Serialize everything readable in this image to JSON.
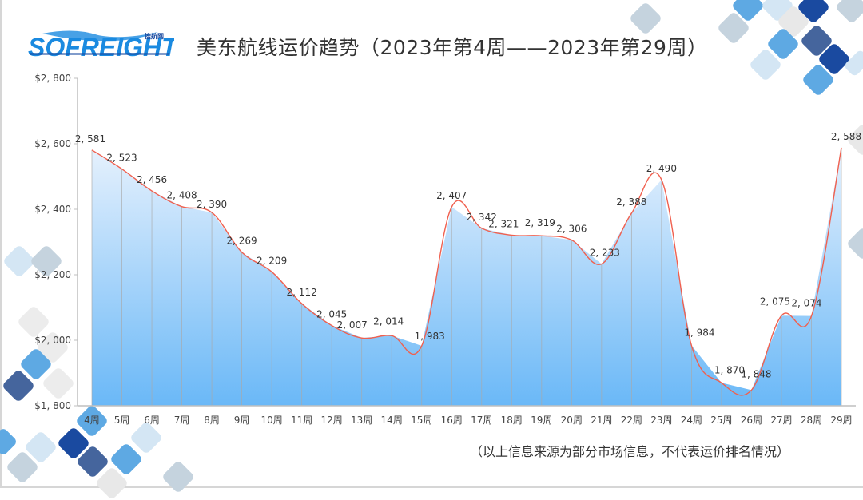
{
  "header": {
    "logo_text": "SOFREIGHT",
    "logo_subtext": "搜航网",
    "title": "美东航线运价趋势（2023年第4周——2023年第29周）"
  },
  "footer": {
    "note": "（以上信息来源为部分市场信息，不代表运价排名情况）"
  },
  "colors": {
    "line": "#f0604f",
    "area_top": "#e6f1fd",
    "area_bottom": "#6ab8f7",
    "axis": "#bfbfbf",
    "grid_vertical": "#a9a9a9",
    "logo_blue": "#1a8ae0",
    "logo_dark": "#1a4aa0"
  },
  "chart_data": {
    "type": "area",
    "title": "美东航线运价趋势（2023年第4周——2023年第29周）",
    "xlabel": "",
    "ylabel": "",
    "categories": [
      "4周",
      "5周",
      "6周",
      "7周",
      "8周",
      "9周",
      "10周",
      "11周",
      "12周",
      "13周",
      "14周",
      "15周",
      "16周",
      "17周",
      "18周",
      "19周",
      "20周",
      "21周",
      "22周",
      "23周",
      "24周",
      "25周",
      "26周",
      "27周",
      "28周",
      "29周"
    ],
    "series": [
      {
        "name": "美东航线运价",
        "values": [
          2581,
          2523,
          2456,
          2408,
          2390,
          2269,
          2209,
          2112,
          2045,
          2007,
          2014,
          1983,
          2407,
          2342,
          2321,
          2319,
          2306,
          2233,
          2388,
          2490,
          1984,
          1870,
          1848,
          2075,
          2074,
          2588
        ]
      }
    ],
    "data_labels": [
      "2, 581",
      "2, 523",
      "2, 456",
      "2, 408",
      "2, 390",
      "2, 269",
      "2, 209",
      "2, 112",
      "2, 045",
      "2, 007",
      "2, 014",
      "1, 983",
      "2, 407",
      "2, 342",
      "2, 321",
      "2, 319",
      "2, 306",
      "2, 233",
      "2, 388",
      "2, 490",
      "1, 984",
      "1, 870",
      "1, 848",
      "2, 075",
      "2, 074",
      "2, 588"
    ],
    "ylim": [
      1800,
      2800
    ],
    "yticks": [
      1800,
      2000,
      2200,
      2400,
      2600,
      2800
    ],
    "ytick_labels": [
      "$1, 800",
      "$2, 000",
      "$2, 200",
      "$2, 400",
      "$2, 600",
      "$2, 800"
    ],
    "grid": "vertical drop lines per point",
    "legend": "none"
  }
}
